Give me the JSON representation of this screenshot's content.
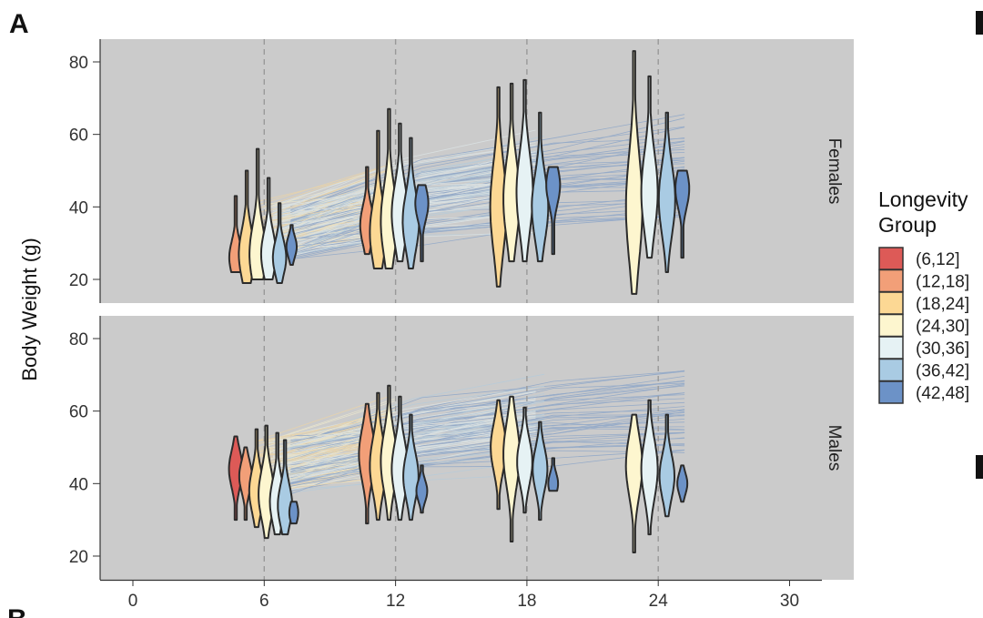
{
  "panel_letters": {
    "top": "A",
    "bottom": "B"
  },
  "chart_data": {
    "type": "violin",
    "ylabel": "Body Weight (g)",
    "xlabel": "",
    "xlim": [
      -1.5,
      32.5
    ],
    "ylim": [
      13,
      86
    ],
    "x_ticks": [
      0,
      6,
      12,
      18,
      24,
      30
    ],
    "y_ticks": [
      20,
      40,
      60,
      80
    ],
    "vlines": [
      6,
      12,
      18,
      24
    ],
    "legend": {
      "title_line1": "Longevity",
      "title_line2": "Group",
      "placement": "right",
      "entries": [
        {
          "label": "(6,12]",
          "color": "#dd5a57"
        },
        {
          "label": "(12,18]",
          "color": "#f29f78"
        },
        {
          "label": "(18,24]",
          "color": "#fcd894"
        },
        {
          "label": "(24,30]",
          "color": "#fdf6cf"
        },
        {
          "label": "(30,36]",
          "color": "#e6f2f4"
        },
        {
          "label": "(36,42]",
          "color": "#a9cbe3"
        },
        {
          "label": "(42,48]",
          "color": "#6c92c7"
        }
      ]
    },
    "facets": [
      {
        "label": "Females",
        "violins": [
          {
            "group": 1,
            "x": 4.7,
            "min": 22,
            "max": 43,
            "mode": 26
          },
          {
            "group": 2,
            "x": 5.2,
            "min": 19,
            "max": 50,
            "mode": 27
          },
          {
            "group": 3,
            "x": 5.7,
            "min": 20,
            "max": 56,
            "mode": 27
          },
          {
            "group": 4,
            "x": 6.2,
            "min": 20,
            "max": 48,
            "mode": 27
          },
          {
            "group": 5,
            "x": 6.7,
            "min": 19,
            "max": 41,
            "mode": 26
          },
          {
            "group": 6,
            "x": 7.25,
            "min": 24,
            "max": 35,
            "mode": 29
          },
          {
            "group": 1,
            "x": 10.7,
            "min": 27,
            "max": 51,
            "mode": 35
          },
          {
            "group": 2,
            "x": 11.2,
            "min": 23,
            "max": 61,
            "mode": 33
          },
          {
            "group": 3,
            "x": 11.7,
            "min": 23,
            "max": 67,
            "mode": 36
          },
          {
            "group": 4,
            "x": 12.2,
            "min": 25,
            "max": 63,
            "mode": 38
          },
          {
            "group": 5,
            "x": 12.7,
            "min": 23,
            "max": 59,
            "mode": 36
          },
          {
            "group": 6,
            "x": 13.2,
            "min": 25,
            "max": 46,
            "mode": 41
          },
          {
            "group": 2,
            "x": 16.7,
            "min": 18,
            "max": 73,
            "mode": 40
          },
          {
            "group": 3,
            "x": 17.3,
            "min": 25,
            "max": 74,
            "mode": 42
          },
          {
            "group": 4,
            "x": 17.9,
            "min": 25,
            "max": 75,
            "mode": 44
          },
          {
            "group": 5,
            "x": 18.6,
            "min": 25,
            "max": 66,
            "mode": 40
          },
          {
            "group": 6,
            "x": 19.2,
            "min": 27,
            "max": 51,
            "mode": 46
          },
          {
            "group": 3,
            "x": 22.9,
            "min": 16,
            "max": 83,
            "mode": 40
          },
          {
            "group": 4,
            "x": 23.6,
            "min": 26,
            "max": 76,
            "mode": 44
          },
          {
            "group": 5,
            "x": 24.4,
            "min": 22,
            "max": 66,
            "mode": 42
          },
          {
            "group": 6,
            "x": 25.1,
            "min": 26,
            "max": 50,
            "mode": 45
          }
        ]
      },
      {
        "label": "Males",
        "violins": [
          {
            "group": 0,
            "x": 4.7,
            "min": 30,
            "max": 53,
            "mode": 44
          },
          {
            "group": 1,
            "x": 5.15,
            "min": 30,
            "max": 50,
            "mode": 42
          },
          {
            "group": 2,
            "x": 5.65,
            "min": 28,
            "max": 55,
            "mode": 38
          },
          {
            "group": 3,
            "x": 6.1,
            "min": 25,
            "max": 56,
            "mode": 37
          },
          {
            "group": 4,
            "x": 6.6,
            "min": 26,
            "max": 54,
            "mode": 35
          },
          {
            "group": 5,
            "x": 6.95,
            "min": 26,
            "max": 52,
            "mode": 34
          },
          {
            "group": 6,
            "x": 7.35,
            "min": 29,
            "max": 35,
            "mode": 32
          },
          {
            "group": 1,
            "x": 10.7,
            "min": 29,
            "max": 62,
            "mode": 48
          },
          {
            "group": 2,
            "x": 11.2,
            "min": 30,
            "max": 65,
            "mode": 45
          },
          {
            "group": 3,
            "x": 11.7,
            "min": 30,
            "max": 67,
            "mode": 46
          },
          {
            "group": 4,
            "x": 12.2,
            "min": 30,
            "max": 64,
            "mode": 44
          },
          {
            "group": 5,
            "x": 12.7,
            "min": 30,
            "max": 59,
            "mode": 42
          },
          {
            "group": 6,
            "x": 13.2,
            "min": 32,
            "max": 45,
            "mode": 38
          },
          {
            "group": 2,
            "x": 16.7,
            "min": 33,
            "max": 63,
            "mode": 50
          },
          {
            "group": 3,
            "x": 17.3,
            "min": 24,
            "max": 64,
            "mode": 48
          },
          {
            "group": 4,
            "x": 17.9,
            "min": 32,
            "max": 61,
            "mode": 46
          },
          {
            "group": 5,
            "x": 18.6,
            "min": 30,
            "max": 57,
            "mode": 44
          },
          {
            "group": 6,
            "x": 19.2,
            "min": 38,
            "max": 47,
            "mode": 40
          },
          {
            "group": 3,
            "x": 22.9,
            "min": 21,
            "max": 59,
            "mode": 45
          },
          {
            "group": 4,
            "x": 23.6,
            "min": 26,
            "max": 63,
            "mode": 44
          },
          {
            "group": 5,
            "x": 24.4,
            "min": 31,
            "max": 59,
            "mode": 42
          },
          {
            "group": 6,
            "x": 25.1,
            "min": 35,
            "max": 45,
            "mode": 40
          }
        ]
      }
    ]
  }
}
